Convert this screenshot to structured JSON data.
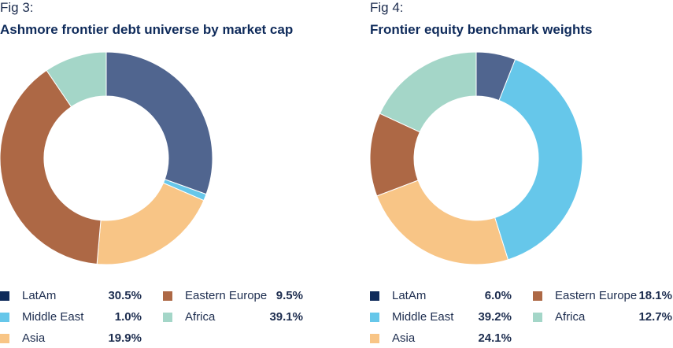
{
  "chart_data": [
    {
      "type": "pie",
      "figure_label": "Fig 3:",
      "title": "Ashmore frontier debt universe by market cap",
      "categories": [
        "LatAm",
        "Middle East",
        "Asia",
        "Africa",
        "Eastern Europe"
      ],
      "values": [
        30.5,
        1.0,
        19.9,
        39.1,
        9.5
      ],
      "value_labels": [
        "30.5%",
        "1.0%",
        "19.9%",
        "39.1%",
        "9.5%"
      ],
      "colors": [
        "#50658f",
        "#66c7ea",
        "#f8c586",
        "#ad6845",
        "#a4d6c8"
      ],
      "legend": [
        {
          "name": "LatAm",
          "value": "30.5%",
          "color": "#0e2a5a"
        },
        {
          "name": "Eastern Europe",
          "value": "9.5%",
          "color": "#ad6845"
        },
        {
          "name": "Middle East",
          "value": "1.0%",
          "color": "#66c7ea"
        },
        {
          "name": "Africa",
          "value": "39.1%",
          "color": "#a4d6c8"
        },
        {
          "name": "Asia",
          "value": "19.9%",
          "color": "#f8c586"
        }
      ],
      "legend_position": "bottom"
    },
    {
      "type": "pie",
      "figure_label": "Fig 4:",
      "title": "Frontier equity benchmark weights",
      "categories": [
        "LatAm",
        "Middle East",
        "Asia",
        "Africa",
        "Eastern Europe"
      ],
      "values": [
        6.0,
        39.2,
        24.1,
        12.7,
        18.1
      ],
      "value_labels": [
        "6.0%",
        "39.2%",
        "24.1%",
        "12.7%",
        "18.1%"
      ],
      "colors": [
        "#50658f",
        "#66c7ea",
        "#f8c586",
        "#ad6845",
        "#a4d6c8"
      ],
      "legend": [
        {
          "name": "LatAm",
          "value": "6.0%",
          "color": "#0e2a5a"
        },
        {
          "name": "Eastern Europe",
          "value": "18.1%",
          "color": "#ad6845"
        },
        {
          "name": "Middle East",
          "value": "39.2%",
          "color": "#66c7ea"
        },
        {
          "name": "Africa",
          "value": "12.7%",
          "color": "#a4d6c8"
        },
        {
          "name": "Asia",
          "value": "24.1%",
          "color": "#f8c586"
        }
      ],
      "legend_position": "bottom"
    }
  ]
}
